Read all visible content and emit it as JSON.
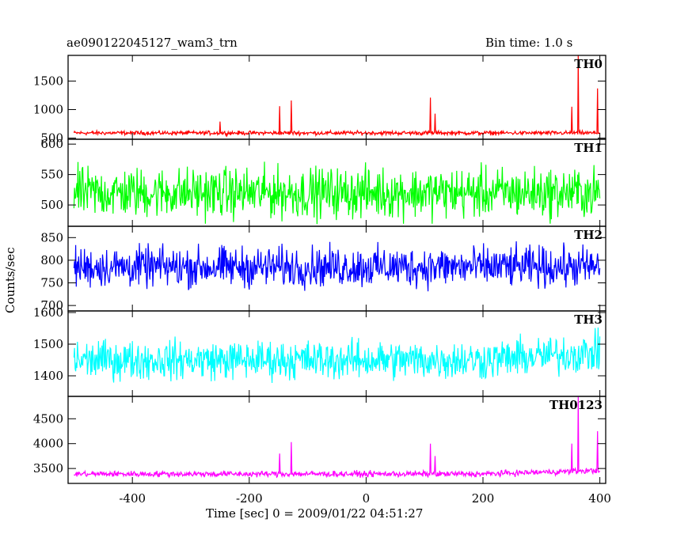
{
  "chart_data": {
    "type": "line",
    "title_left": "ae090122045127_wam3_trn",
    "title_right": "Bin time: 1.0 s",
    "xlabel": "Time [sec] 0 = 2009/01/22 04:51:27",
    "ylabel": "Counts/sec",
    "xlim": [
      -510,
      410
    ],
    "x_ticks": [
      -400,
      -200,
      0,
      200,
      400
    ],
    "panels": [
      {
        "name": "TH0",
        "color": "#ff0000",
        "ylim": [
          480,
          1950
        ],
        "y_ticks": [
          500,
          1000,
          1500
        ],
        "series": {
          "x_range": [
            -500,
            400
          ],
          "baseline": 590,
          "noise": 30,
          "spikes": [
            [
              -250,
              790
            ],
            [
              -148,
              1060
            ],
            [
              -128,
              1160
            ],
            [
              110,
              1210
            ],
            [
              118,
              930
            ],
            [
              352,
              1050
            ],
            [
              363,
              1950
            ],
            [
              396,
              1370
            ]
          ]
        }
      },
      {
        "name": "TH1",
        "color": "#00ff00",
        "ylim": [
          465,
          608
        ],
        "y_ticks": [
          500,
          550,
          600
        ],
        "series": {
          "x_range": [
            -500,
            400
          ],
          "baseline": 520,
          "noise": 35,
          "spikes": []
        }
      },
      {
        "name": "TH2",
        "color": "#0000ff",
        "ylim": [
          688,
          875
        ],
        "y_ticks": [
          700,
          750,
          800,
          850
        ],
        "series": {
          "x_range": [
            -500,
            400
          ],
          "baseline": 785,
          "noise": 38,
          "spikes": []
        }
      },
      {
        "name": "TH3",
        "color": "#00ffff",
        "ylim": [
          1335,
          1605
        ],
        "y_ticks": [
          1400,
          1500,
          1600
        ],
        "series": {
          "x_range": [
            -500,
            400
          ],
          "baseline": 1450,
          "noise": 52,
          "spikes": []
        }
      },
      {
        "name": "TH0123",
        "color": "#ff00ff",
        "ylim": [
          3200,
          4950
        ],
        "y_ticks": [
          3500,
          4000,
          4500
        ],
        "series": {
          "x_range": [
            -500,
            400
          ],
          "baseline": 3390,
          "noise": 50,
          "spikes": [
            [
              -148,
              3800
            ],
            [
              -128,
              4030
            ],
            [
              110,
              4000
            ],
            [
              118,
              3750
            ],
            [
              352,
              4000
            ],
            [
              363,
              4950
            ],
            [
              396,
              4250
            ]
          ]
        }
      }
    ]
  }
}
